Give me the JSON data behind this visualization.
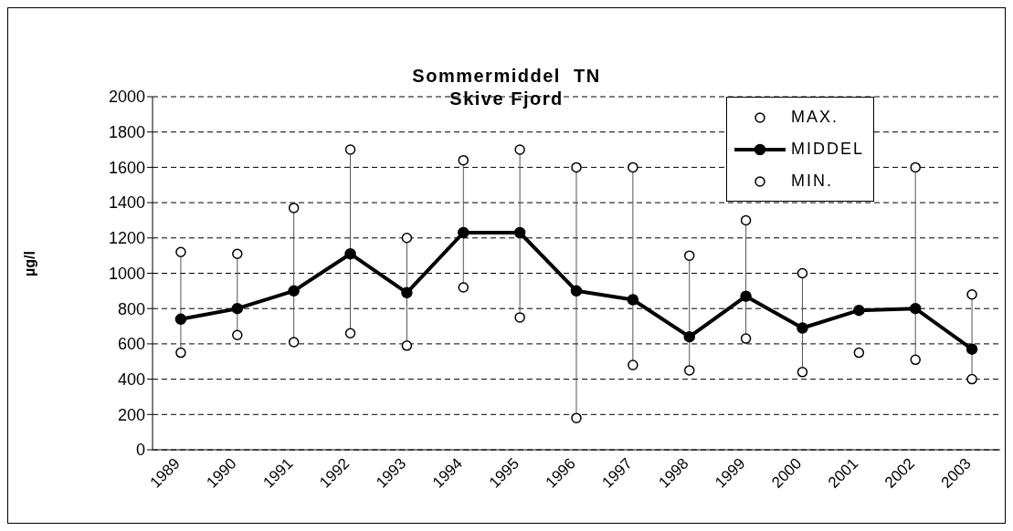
{
  "chart_data": {
    "type": "line",
    "title": "Sommermiddel  TN",
    "subtitle": "Skive Fjord",
    "ylabel": "µg/l",
    "categories": [
      "1989",
      "1990",
      "1991",
      "1992",
      "1993",
      "1994",
      "1995",
      "1996",
      "1997",
      "1998",
      "1999",
      "2000",
      "2001",
      "2002",
      "2003"
    ],
    "series": [
      {
        "name": "MAX.",
        "type": "scatter",
        "marker": "circle",
        "color": "#000000",
        "values": [
          1120,
          1110,
          1370,
          1700,
          1200,
          1640,
          1700,
          1600,
          1600,
          1100,
          1300,
          1000,
          null,
          1600,
          880
        ]
      },
      {
        "name": "MIDDEL",
        "marker": "circle",
        "color": "#000000",
        "values": [
          740,
          800,
          900,
          1110,
          890,
          1230,
          1230,
          900,
          850,
          640,
          870,
          690,
          790,
          800,
          570
        ]
      },
      {
        "name": "MIN.",
        "type": "scatter",
        "marker": "circle",
        "color": "#000000",
        "values": [
          550,
          650,
          610,
          660,
          590,
          920,
          750,
          180,
          480,
          450,
          630,
          440,
          550,
          510,
          400
        ]
      }
    ],
    "ylim": [
      0,
      2000
    ],
    "yticks": [
      0,
      200,
      400,
      600,
      800,
      1000,
      1200,
      1400,
      1600,
      1800,
      2000
    ],
    "grid": "y",
    "legend": "top right"
  }
}
